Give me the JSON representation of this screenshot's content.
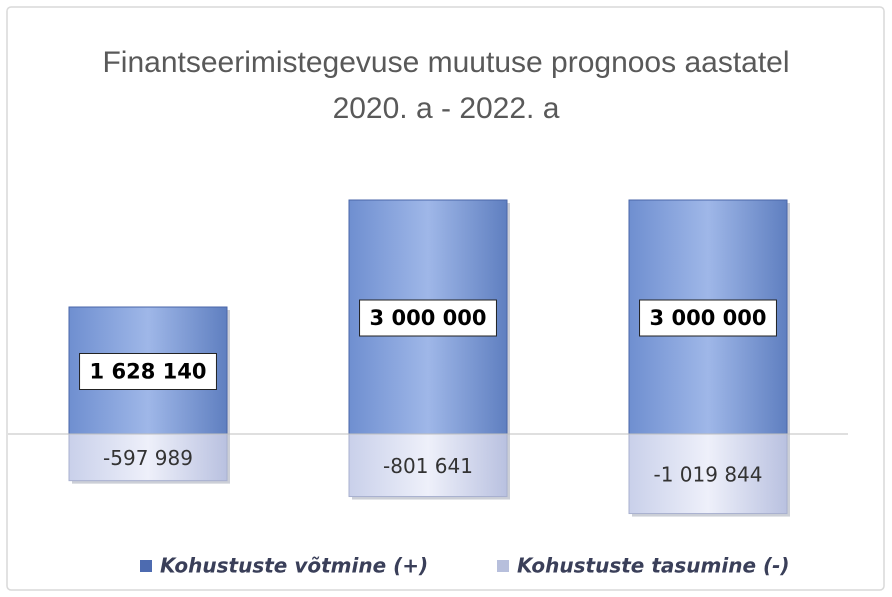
{
  "chart_data": {
    "type": "bar",
    "title": "Finantseerimistegevuse muutuse prognoos aastatel 2020. a - 2022. a",
    "categories": [
      null,
      null,
      null
    ],
    "series": [
      {
        "name": "Kohustuste võtmine (+)",
        "color": "#8ea9e0",
        "values": [
          1628140,
          3000000,
          3000000
        ],
        "value_labels": [
          "1 628 140",
          "3 000 000",
          "3 000 000"
        ]
      },
      {
        "name": "Kohustuste tasumine (-)",
        "color": "#dde2f4",
        "values": [
          -597989,
          -801641,
          -1019844
        ],
        "value_labels": [
          "-597 989",
          "-801 641",
          "-1 019 844"
        ]
      }
    ],
    "ylim": [
      -1500000,
      3500000
    ]
  }
}
